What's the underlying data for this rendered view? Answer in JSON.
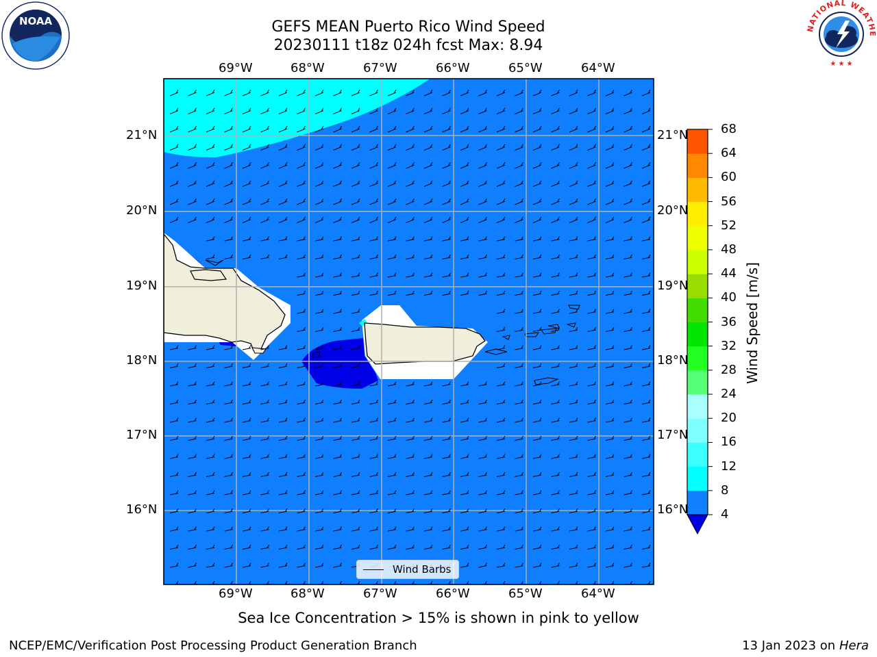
{
  "header": {
    "title_line1": "GEFS MEAN Puerto Rico Wind Speed",
    "title_line2": "20230111 t18z 024h fcst   Max: 8.94"
  },
  "logos": {
    "noaa_text": "NOAA",
    "nws_text": "NATIONAL WEATHER SERVICE"
  },
  "map": {
    "lon_labels": [
      "69°W",
      "68°W",
      "67°W",
      "66°W",
      "65°W",
      "64°W"
    ],
    "lat_labels": [
      "21°N",
      "20°N",
      "19°N",
      "18°N",
      "17°N",
      "16°N"
    ],
    "legend_label": "Wind Barbs",
    "colors": {
      "ocean_4_8": "#0f7fff",
      "band_8_12": "#00ffff",
      "below_4": "#0000e6",
      "land": "#efefdc",
      "grid": "#b0b0b0"
    }
  },
  "colorbar": {
    "label": "Wind Speed [m/s]",
    "ticks": [
      "68",
      "64",
      "60",
      "56",
      "52",
      "48",
      "44",
      "40",
      "36",
      "32",
      "28",
      "24",
      "20",
      "16",
      "12",
      "8",
      "4"
    ],
    "colors": [
      "#1080ff",
      "#00ffff",
      "#3bffff",
      "#7fffff",
      "#aaffff",
      "#55ff77",
      "#22ff22",
      "#00e600",
      "#44dd00",
      "#99dd00",
      "#ccff00",
      "#eeff00",
      "#ffee00",
      "#ffbb00",
      "#ff8800",
      "#ff5500",
      "#ff2200",
      "#ff0000"
    ],
    "extend_color": "#0000e6"
  },
  "notes": {
    "sea_ice": "Sea Ice Concentration > 15% is shown in pink to yellow"
  },
  "footer": {
    "left": "NCEP/EMC/Verification Post Processing Product Generation Branch",
    "right_prefix": "13 Jan 2023 on ",
    "right_host": "Hera"
  }
}
